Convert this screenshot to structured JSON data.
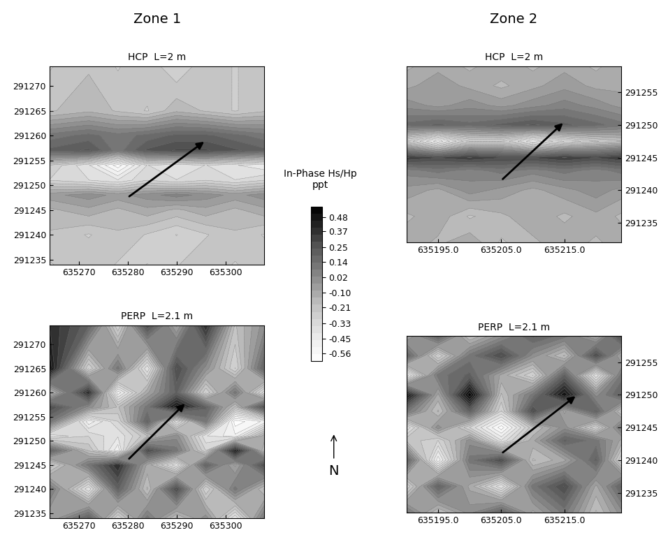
{
  "chart_data": [
    {
      "type": "contour",
      "subtitle": "Zone 1",
      "title": "HCP  L=2 m",
      "x": [
        635264,
        635272,
        635278,
        635284,
        635290,
        635296,
        635302,
        635308
      ],
      "y": [
        291234,
        291240,
        291245,
        291248,
        291251,
        291254,
        291257,
        291260,
        291265,
        291274
      ],
      "cells": [
        [
          -0.25,
          -0.2,
          -0.25,
          -0.3,
          -0.25,
          -0.2,
          -0.25,
          -0.2
        ],
        [
          -0.2,
          -0.25,
          -0.2,
          -0.25,
          -0.3,
          -0.25,
          -0.2,
          -0.25
        ],
        [
          -0.15,
          -0.1,
          -0.15,
          -0.1,
          -0.15,
          -0.1,
          -0.15,
          -0.1
        ],
        [
          -0.05,
          0.0,
          -0.05,
          0.0,
          0.05,
          0.0,
          -0.05,
          0.0
        ],
        [
          -0.3,
          -0.35,
          -0.4,
          -0.3,
          -0.35,
          -0.3,
          -0.35,
          -0.3
        ],
        [
          -0.25,
          -0.4,
          -0.6,
          -0.35,
          -0.4,
          -0.35,
          -0.4,
          -0.45
        ],
        [
          0.2,
          0.25,
          0.1,
          0.25,
          0.3,
          0.3,
          0.25,
          0.2
        ],
        [
          0.1,
          0.15,
          0.1,
          0.15,
          0.2,
          0.2,
          0.15,
          0.1
        ],
        [
          -0.2,
          -0.15,
          -0.2,
          -0.25,
          -0.15,
          -0.2,
          -0.25,
          -0.2
        ],
        [
          -0.25,
          -0.2,
          -0.25,
          -0.2,
          -0.3,
          -0.2,
          -0.25,
          -0.2
        ]
      ],
      "arrow": [
        [
          635280,
          291247.5
        ],
        [
          635296,
          291259
        ]
      ],
      "xlim": [
        635264,
        635308
      ],
      "ylim": [
        291234,
        291274
      ],
      "xticks": [
        635270,
        635280,
        635290,
        635300
      ],
      "yticks": [
        291235,
        291240,
        291245,
        291250,
        291255,
        291260,
        291265,
        291270
      ]
    },
    {
      "type": "contour",
      "subtitle": "Zone 2",
      "title": "HCP  L=2 m",
      "x": [
        635190,
        635195,
        635200,
        635205,
        635210,
        635215,
        635220,
        635224
      ],
      "y": [
        291232,
        291236,
        291240,
        291243,
        291245,
        291247.5,
        291250,
        291253,
        291256,
        291259
      ],
      "cells": [
        [
          -0.1,
          -0.15,
          -0.1,
          -0.2,
          -0.15,
          -0.1,
          -0.15,
          -0.1
        ],
        [
          -0.15,
          -0.1,
          -0.2,
          -0.15,
          -0.1,
          -0.15,
          -0.1,
          -0.15
        ],
        [
          -0.05,
          -0.1,
          0.0,
          -0.05,
          -0.1,
          -0.05,
          0.0,
          -0.05
        ],
        [
          0.05,
          0.1,
          0.05,
          0.1,
          0.05,
          0.1,
          0.05,
          0.1
        ],
        [
          0.35,
          0.3,
          0.35,
          0.3,
          0.3,
          0.35,
          0.3,
          0.35
        ],
        [
          -0.3,
          -0.55,
          -0.3,
          -0.3,
          -0.5,
          -0.35,
          -0.25,
          -0.2
        ],
        [
          0.15,
          0.2,
          0.15,
          0.2,
          0.25,
          0.2,
          0.15,
          0.1
        ],
        [
          0.0,
          -0.05,
          0.0,
          -0.05,
          0.0,
          0.05,
          0.0,
          -0.05
        ],
        [
          -0.1,
          -0.05,
          -0.1,
          -0.15,
          -0.1,
          -0.05,
          -0.1,
          -0.1
        ],
        [
          -0.15,
          -0.1,
          -0.15,
          -0.1,
          -0.15,
          -0.1,
          -0.15,
          -0.1
        ]
      ],
      "arrow": [
        [
          635205,
          291241.5
        ],
        [
          635215,
          291250.5
        ]
      ],
      "xlim": [
        635190,
        635224
      ],
      "ylim": [
        291232,
        291259
      ],
      "xticks": [
        {
          "value": 635195,
          "label": "635195.0"
        },
        {
          "value": 635205,
          "label": "635205.0"
        },
        {
          "value": 635215,
          "label": "635215.0"
        }
      ],
      "yticks": [
        291235,
        291240,
        291245,
        291250,
        291255
      ]
    },
    {
      "type": "contour",
      "title": "PERP  L=2.1 m",
      "x": [
        635264,
        635272,
        635278,
        635284,
        635290,
        635296,
        635302,
        635308
      ],
      "y": [
        291234,
        291240,
        291245,
        291248,
        291251,
        291254,
        291257,
        291260,
        291265,
        291274
      ],
      "cells": [
        [
          -0.1,
          0.2,
          -0.3,
          0.1,
          -0.2,
          0.0,
          -0.4,
          0.1
        ],
        [
          0.1,
          -0.4,
          0.2,
          -0.2,
          0.3,
          -0.3,
          0.1,
          -0.2
        ],
        [
          -0.3,
          0.1,
          0.4,
          -0.1,
          -0.4,
          0.2,
          -0.1,
          0.3
        ],
        [
          0.2,
          -0.2,
          -0.5,
          0.3,
          0.1,
          -0.3,
          0.5,
          -0.2
        ],
        [
          -0.4,
          -0.3,
          -0.4,
          -0.2,
          0.0,
          -0.4,
          -0.5,
          -0.1
        ],
        [
          0.1,
          -0.5,
          -0.3,
          0.2,
          -0.4,
          0.1,
          -0.6,
          -0.5
        ],
        [
          0.3,
          0.0,
          -0.2,
          0.1,
          0.5,
          0.2,
          -0.2,
          0.3
        ],
        [
          -0.2,
          0.4,
          -0.5,
          -0.1,
          0.2,
          -0.3,
          0.1,
          -0.4
        ],
        [
          0.5,
          -0.3,
          0.1,
          -0.4,
          0.3,
          0.0,
          -0.3,
          0.2
        ],
        [
          0.4,
          0.2,
          -0.3,
          0.3,
          -0.1,
          0.4,
          -0.2,
          0.0
        ]
      ],
      "arrow": [
        [
          635280,
          291246
        ],
        [
          635292,
          291258
        ]
      ],
      "xlim": [
        635264,
        635308
      ],
      "ylim": [
        291234,
        291274
      ],
      "xticks": [
        635270,
        635280,
        635290,
        635300
      ],
      "yticks": [
        291235,
        291240,
        291245,
        291250,
        291255,
        291260,
        291265,
        291270
      ]
    },
    {
      "type": "contour",
      "title": "PERP  L=2.1 m",
      "x": [
        635190,
        635195,
        635200,
        635205,
        635210,
        635215,
        635220,
        635224
      ],
      "y": [
        291232,
        291236,
        291240,
        291243,
        291245,
        291247.5,
        291250,
        291253,
        291256,
        291259
      ],
      "cells": [
        [
          0.1,
          -0.2,
          0.0,
          0.2,
          -0.1,
          0.1,
          -0.2,
          0.0
        ],
        [
          -0.3,
          0.2,
          -0.1,
          -0.4,
          0.1,
          0.3,
          -0.1,
          0.2
        ],
        [
          0.2,
          -0.5,
          0.1,
          0.3,
          -0.2,
          -0.1,
          0.2,
          -0.3
        ],
        [
          -0.2,
          -0.3,
          0.0,
          -0.4,
          -0.1,
          0.2,
          0.1,
          -0.1
        ],
        [
          -0.4,
          0.0,
          -0.3,
          -0.6,
          -0.2,
          0.0,
          -0.3,
          0.1
        ],
        [
          0.1,
          -0.2,
          0.2,
          -0.3,
          0.3,
          -0.1,
          0.2,
          -0.2
        ],
        [
          0.5,
          -0.1,
          0.55,
          -0.2,
          0.1,
          0.5,
          0.0,
          0.2
        ],
        [
          -0.5,
          0.1,
          0.2,
          -0.1,
          -0.3,
          0.2,
          -0.4,
          0.1
        ],
        [
          0.2,
          -0.3,
          0.1,
          0.3,
          0.0,
          -0.2,
          0.3,
          -0.1
        ],
        [
          -0.1,
          0.2,
          -0.2,
          0.0,
          0.2,
          0.1,
          -0.1,
          0.3
        ]
      ],
      "arrow": [
        [
          635205,
          291241
        ],
        [
          635217,
          291250
        ]
      ],
      "xlim": [
        635190,
        635224
      ],
      "ylim": [
        291232,
        291259
      ],
      "xticks": [
        {
          "value": 635195,
          "label": "635195.0"
        },
        {
          "value": 635205,
          "label": "635205.0"
        },
        {
          "value": 635215,
          "label": "635215.0"
        }
      ],
      "yticks": [
        291235,
        291240,
        291245,
        291250,
        291255
      ]
    }
  ],
  "colorbar": {
    "label": "In-Phase Hs/Hp\nppt",
    "zlim": [
      -0.62,
      0.56
    ],
    "ticks": [
      0.48,
      0.37,
      0.25,
      0.14,
      0.02,
      {
        "value": -0.1,
        "label": "-0.10"
      },
      -0.21,
      -0.33,
      -0.45,
      -0.56
    ]
  },
  "north": "N"
}
